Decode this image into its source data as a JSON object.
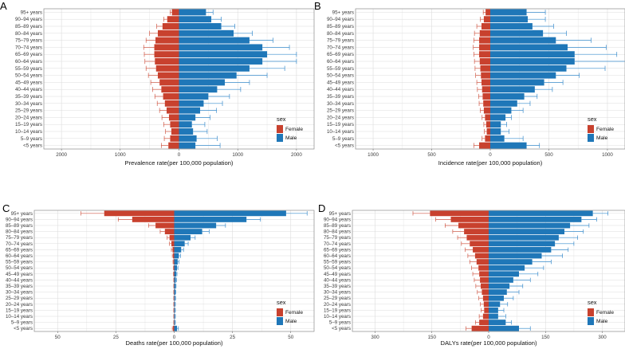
{
  "colors": {
    "female": "#c8412e",
    "male": "#1f77b8",
    "grid": "#dcdcdc",
    "panel_border": "#8c8c8c",
    "error": "#d05a48",
    "error_male": "#3a8ccc"
  },
  "legend": {
    "title": "sex",
    "female": "Female",
    "male": "Male"
  },
  "age_groups": [
    "<5 years",
    "5–9 years",
    "10–14 years",
    "15–19 years",
    "20–24 years",
    "25–29 years",
    "30–34 years",
    "35–39 years",
    "40–44 years",
    "45–49 years",
    "50–54 years",
    "55–59 years",
    "60–64 years",
    "65–69 years",
    "70–74 years",
    "75–79 years",
    "80–84 years",
    "85–89 years",
    "90–94 years",
    "95+ years"
  ],
  "chart_data": [
    {
      "panel": "A",
      "type": "bar",
      "orientation": "population-pyramid",
      "xlabel": "Prevalence rate(per 100,000 population)",
      "xlim": [
        -2300,
        2300
      ],
      "tick_values": [
        -2000,
        -1000,
        0,
        1000,
        2000
      ],
      "tick_labels": [
        "2000",
        "1000",
        "0",
        "1000",
        "2000"
      ],
      "series": [
        {
          "name": "Female",
          "values": [
            180,
            150,
            130,
            150,
            170,
            210,
            240,
            270,
            300,
            330,
            360,
            390,
            410,
            420,
            420,
            400,
            360,
            280,
            200,
            120
          ],
          "upper": [
            300,
            250,
            230,
            260,
            290,
            330,
            370,
            410,
            450,
            480,
            520,
            560,
            580,
            590,
            600,
            560,
            500,
            380,
            260,
            150
          ]
        },
        {
          "name": "Male",
          "values": [
            280,
            300,
            240,
            220,
            280,
            360,
            420,
            500,
            650,
            780,
            980,
            1200,
            1420,
            1500,
            1420,
            1200,
            930,
            720,
            550,
            460
          ],
          "upper": [
            700,
            650,
            480,
            440,
            530,
            640,
            740,
            860,
            1050,
            1200,
            1500,
            1800,
            2000,
            2000,
            1880,
            1600,
            1250,
            950,
            720,
            580
          ]
        }
      ]
    },
    {
      "panel": "B",
      "type": "bar",
      "orientation": "population-pyramid",
      "xlabel": "Incidence rate(per 100,000 population)",
      "xlim": [
        -1150,
        1150
      ],
      "tick_values": [
        -1000,
        -500,
        0,
        500,
        1000
      ],
      "tick_labels": [
        "1000",
        "500",
        "0",
        "500",
        "1000"
      ],
      "series": [
        {
          "name": "Female",
          "values": [
            95,
            45,
            30,
            35,
            45,
            55,
            60,
            65,
            70,
            75,
            80,
            85,
            90,
            95,
            95,
            95,
            90,
            75,
            55,
            40
          ],
          "upper": [
            140,
            70,
            50,
            55,
            70,
            85,
            95,
            100,
            110,
            115,
            125,
            130,
            135,
            140,
            145,
            140,
            135,
            115,
            85,
            60
          ]
        },
        {
          "name": "Male",
          "values": [
            310,
            120,
            90,
            90,
            130,
            180,
            230,
            290,
            380,
            460,
            560,
            650,
            720,
            720,
            660,
            560,
            450,
            360,
            320,
            310
          ],
          "upper": [
            420,
            280,
            160,
            140,
            180,
            280,
            340,
            400,
            530,
            620,
            760,
            980,
            1180,
            1080,
            990,
            860,
            650,
            540,
            470,
            470
          ]
        }
      ]
    },
    {
      "panel": "C",
      "type": "bar",
      "orientation": "population-pyramid",
      "xlabel": "Deaths rate(per 100,000 population)",
      "xlim": [
        -60,
        60
      ],
      "tick_values": [
        -50,
        -25,
        0,
        25,
        50
      ],
      "tick_labels": [
        "50",
        "25",
        "0",
        "25",
        "50"
      ],
      "series": [
        {
          "name": "Female",
          "values": [
            0.5,
            0.1,
            0.1,
            0.1,
            0.1,
            0.1,
            0.1,
            0.1,
            0.1,
            0.2,
            0.2,
            0.3,
            0.5,
            0.7,
            1.2,
            2.0,
            4.0,
            8.0,
            18,
            30
          ],
          "upper": [
            0.8,
            0.2,
            0.2,
            0.2,
            0.2,
            0.2,
            0.2,
            0.2,
            0.2,
            0.3,
            0.4,
            0.5,
            0.8,
            1.2,
            2.0,
            3.0,
            6.0,
            11,
            24,
            40
          ]
        },
        {
          "name": "Male",
          "values": [
            1.2,
            0.3,
            0.3,
            0.3,
            0.3,
            0.4,
            0.5,
            0.6,
            0.7,
            0.9,
            1.2,
            1.5,
            2.0,
            3.0,
            4.5,
            7.0,
            12,
            18,
            31,
            48
          ],
          "upper": [
            1.8,
            0.5,
            0.5,
            0.5,
            0.5,
            0.6,
            0.7,
            0.8,
            1.0,
            1.2,
            1.6,
            2.0,
            2.7,
            4.0,
            6.0,
            9.0,
            15,
            22,
            37,
            57
          ]
        }
      ]
    },
    {
      "panel": "D",
      "type": "bar",
      "orientation": "population-pyramid",
      "xlabel": "DALYs rate(per 100,000 population)",
      "xlim": [
        -360,
        360
      ],
      "tick_values": [
        -300,
        -150,
        0,
        150,
        300
      ],
      "tick_labels": [
        "300",
        "150",
        "0",
        "150",
        "300"
      ],
      "series": [
        {
          "name": "Female",
          "values": [
            45,
            25,
            15,
            12,
            13,
            15,
            18,
            21,
            23,
            25,
            27,
            32,
            36,
            42,
            50,
            58,
            65,
            80,
            100,
            155
          ],
          "upper": [
            60,
            35,
            25,
            20,
            22,
            26,
            30,
            34,
            38,
            42,
            45,
            50,
            55,
            62,
            72,
            82,
            95,
            115,
            140,
            200
          ]
        },
        {
          "name": "Male",
          "values": [
            80,
            45,
            25,
            25,
            30,
            40,
            48,
            55,
            65,
            80,
            95,
            115,
            140,
            165,
            175,
            185,
            200,
            215,
            245,
            275
          ],
          "upper": [
            110,
            60,
            45,
            40,
            50,
            65,
            80,
            90,
            110,
            130,
            145,
            165,
            195,
            210,
            225,
            235,
            250,
            265,
            285,
            315
          ]
        }
      ]
    }
  ]
}
